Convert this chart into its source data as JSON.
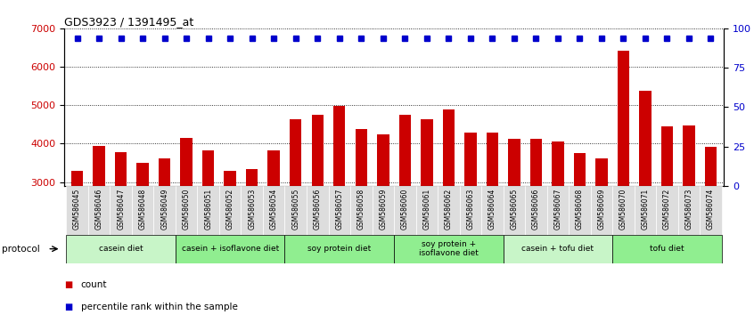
{
  "title": "GDS3923 / 1391495_at",
  "samples": [
    "GSM586045",
    "GSM586046",
    "GSM586047",
    "GSM586048",
    "GSM586049",
    "GSM586050",
    "GSM586051",
    "GSM586052",
    "GSM586053",
    "GSM586054",
    "GSM586055",
    "GSM586056",
    "GSM586057",
    "GSM586058",
    "GSM586059",
    "GSM586060",
    "GSM586061",
    "GSM586062",
    "GSM586063",
    "GSM586064",
    "GSM586065",
    "GSM586066",
    "GSM586067",
    "GSM586068",
    "GSM586069",
    "GSM586070",
    "GSM586071",
    "GSM586072",
    "GSM586073",
    "GSM586074"
  ],
  "counts": [
    3300,
    3950,
    3780,
    3490,
    3620,
    4150,
    3820,
    3300,
    3340,
    3820,
    4640,
    4760,
    4990,
    4380,
    4230,
    4740,
    4640,
    4890,
    4280,
    4280,
    4120,
    4130,
    4060,
    3760,
    3620,
    6420,
    5380,
    4440,
    4480,
    3920
  ],
  "percentile_value": 6750,
  "groups": [
    {
      "label": "casein diet",
      "start": 0,
      "end": 5,
      "color": "#c8f5c8"
    },
    {
      "label": "casein + isoflavone diet",
      "start": 5,
      "end": 10,
      "color": "#90EE90"
    },
    {
      "label": "soy protein diet",
      "start": 10,
      "end": 15,
      "color": "#90EE90"
    },
    {
      "label": "soy protein +\nisoflavone diet",
      "start": 15,
      "end": 20,
      "color": "#90EE90"
    },
    {
      "label": "casein + tofu diet",
      "start": 20,
      "end": 25,
      "color": "#c8f5c8"
    },
    {
      "label": "tofu diet",
      "start": 25,
      "end": 30,
      "color": "#90EE90"
    }
  ],
  "bar_color": "#CC0000",
  "dot_color": "#0000CC",
  "ylim_left": [
    2900,
    7000
  ],
  "ylim_right": [
    0,
    100
  ],
  "yticks_left": [
    3000,
    4000,
    5000,
    6000,
    7000
  ],
  "yticks_right": [
    0,
    25,
    50,
    75,
    100
  ],
  "bg_color": "#ffffff",
  "ticklabel_bg": "#dddddd"
}
